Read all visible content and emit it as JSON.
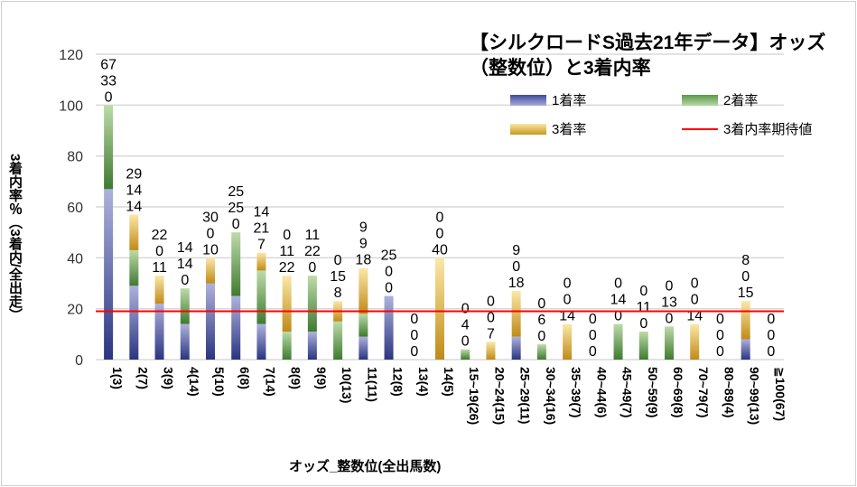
{
  "chart_data": {
    "type": "bar",
    "stacked": true,
    "title": "【シルクロードS過去21年データ】オッズ（整数位）と3着内率",
    "xlabel": "オッズ_整数位(全出馬数)",
    "ylabel": "3着内率％（3着内/全出走）",
    "ylim": [
      0,
      120
    ],
    "yticks": [
      0,
      20,
      40,
      60,
      80,
      100,
      120
    ],
    "grid": true,
    "legend_position": "top-right",
    "categories": [
      "1(3)",
      "2(7)",
      "3(9)",
      "4(14)",
      "5(10)",
      "6(8)",
      "7(14)",
      "8(9)",
      "9(9)",
      "10(13)",
      "11(11)",
      "12(8)",
      "13(4)",
      "14(5)",
      "15~19(26)",
      "20~24(15)",
      "25~29(11)",
      "30~34(16)",
      "35~39(7)",
      "40~44(6)",
      "45~49(7)",
      "50~59(9)",
      "60~69(8)",
      "70~79(7)",
      "80~89(4)",
      "90~99(13)",
      "≧100(67)"
    ],
    "series": [
      {
        "name": "1着率",
        "color": "#2e3a87",
        "values": [
          67,
          29,
          22,
          14,
          30,
          25,
          14,
          0,
          11,
          0,
          9,
          25,
          0,
          0,
          0,
          0,
          9,
          0,
          0,
          0,
          0,
          0,
          0,
          0,
          0,
          8,
          0
        ]
      },
      {
        "name": "2着率",
        "color": "#4e8a3a",
        "values": [
          33,
          14,
          0,
          14,
          0,
          25,
          21,
          11,
          22,
          15,
          9,
          0,
          0,
          0,
          4,
          0,
          0,
          6,
          0,
          0,
          14,
          11,
          13,
          0,
          0,
          0,
          0
        ]
      },
      {
        "name": "3着率",
        "color": "#c8961e",
        "values": [
          0,
          14,
          11,
          0,
          10,
          0,
          7,
          22,
          0,
          8,
          18,
          0,
          0,
          40,
          0,
          7,
          18,
          0,
          14,
          0,
          0,
          0,
          0,
          14,
          0,
          15,
          0
        ]
      }
    ],
    "reference_line": {
      "name": "3着内率期待値",
      "value": 19,
      "color": "#ff0000"
    }
  }
}
